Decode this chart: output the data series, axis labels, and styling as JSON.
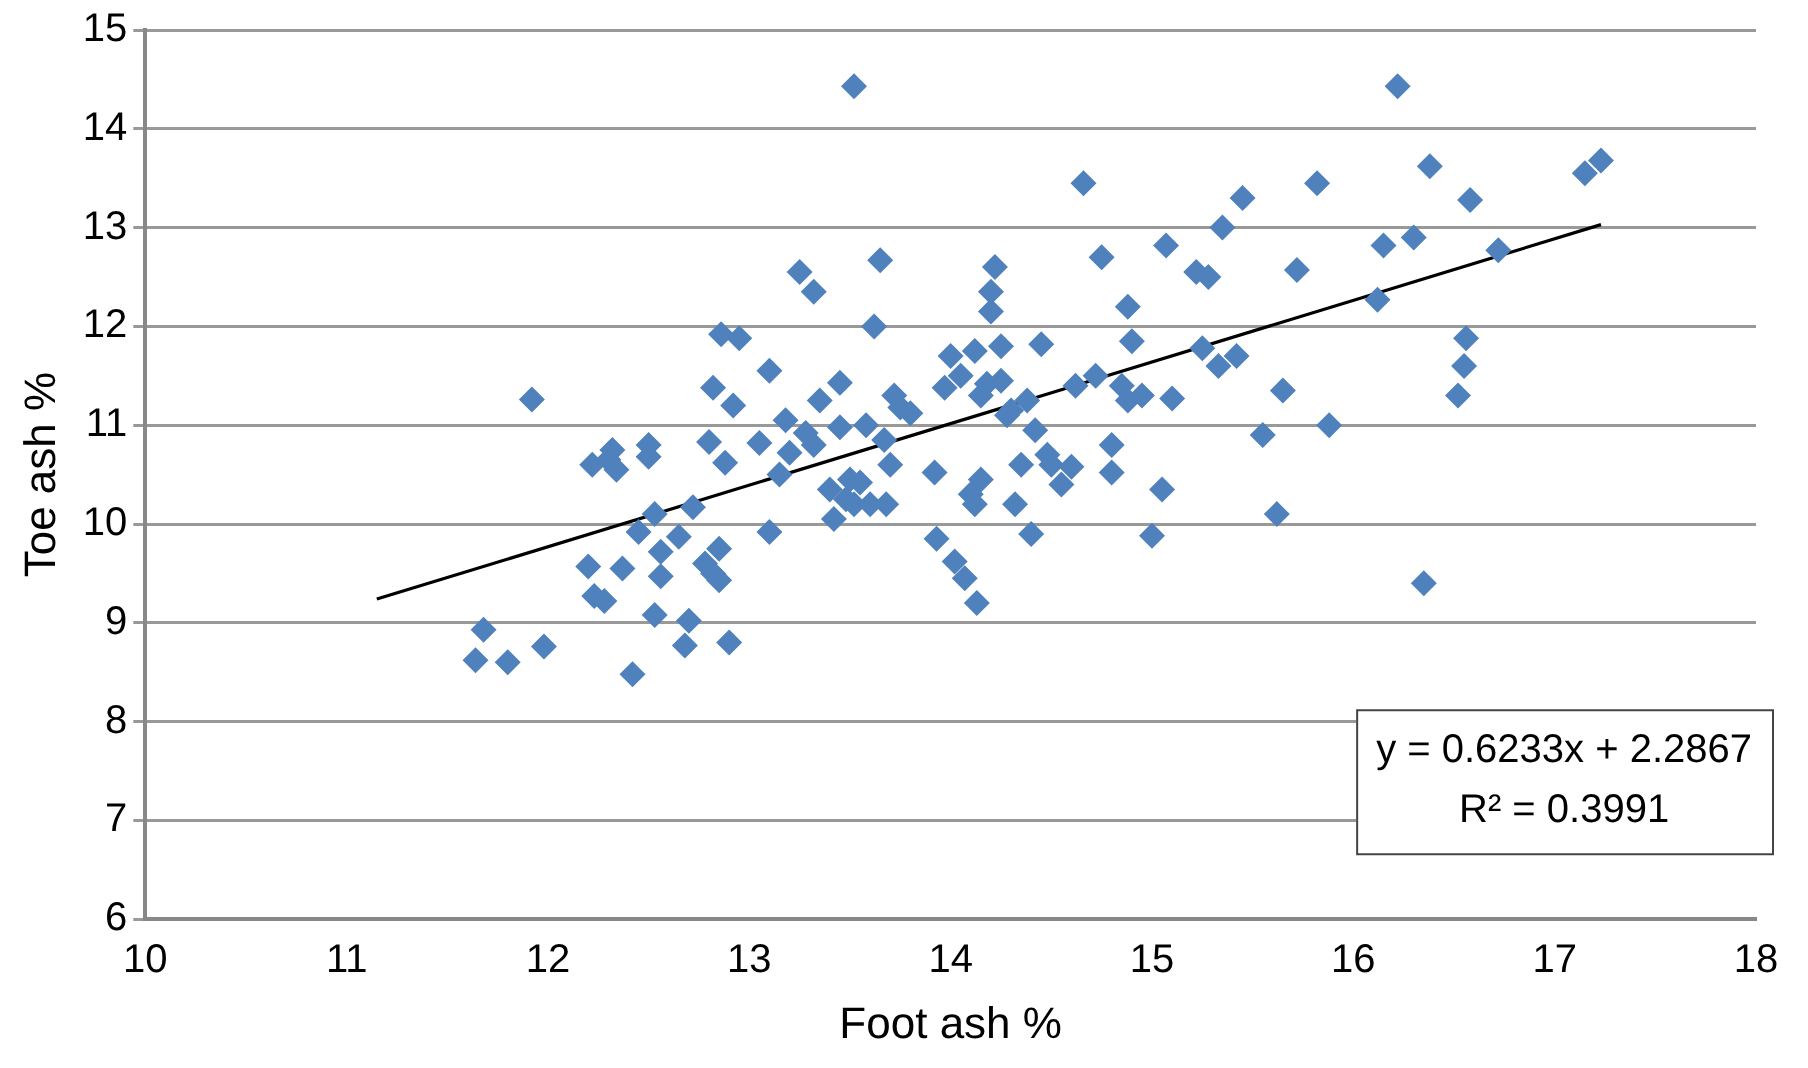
{
  "chart_data": {
    "type": "scatter",
    "xlabel": "Foot ash %",
    "ylabel": "Toe ash %",
    "xlim": [
      10,
      18
    ],
    "xticks": [
      10,
      11,
      12,
      13,
      14,
      15,
      16,
      17,
      18
    ],
    "ylim": [
      6,
      15
    ],
    "yticks": [
      6,
      7,
      8,
      9,
      10,
      11,
      12,
      13,
      14,
      15
    ],
    "grid": "y",
    "legend": false,
    "marker": "diamond",
    "annotations": [
      "y = 0.6233x + 2.2867",
      "R² = 0.3991"
    ],
    "series": [
      {
        "color": "#4f81bd",
        "x": [
          11.64,
          11.68,
          11.8,
          11.92,
          11.98,
          12.2,
          12.23,
          12.22,
          12.3,
          12.32,
          12.28,
          12.34,
          12.37,
          12.42,
          12.45,
          12.5,
          12.5,
          12.53,
          12.53,
          12.56,
          12.56,
          12.65,
          12.7,
          12.72,
          12.68,
          12.78,
          12.8,
          12.82,
          12.82,
          12.86,
          12.85,
          12.85,
          12.88,
          12.9,
          12.92,
          12.95,
          13.05,
          13.1,
          13.1,
          13.15,
          13.2,
          13.18,
          13.25,
          13.28,
          13.32,
          13.35,
          13.32,
          13.4,
          13.42,
          13.45,
          13.45,
          13.48,
          13.5,
          13.52,
          13.52,
          13.55,
          13.58,
          13.6,
          13.62,
          13.65,
          13.67,
          13.68,
          13.7,
          13.72,
          13.75,
          13.8,
          13.92,
          13.93,
          13.97,
          14.0,
          14.02,
          14.05,
          14.07,
          14.1,
          14.12,
          14.12,
          14.13,
          14.15,
          14.15,
          14.18,
          14.2,
          14.2,
          14.22,
          14.25,
          14.25,
          14.28,
          14.3,
          14.32,
          14.35,
          14.38,
          14.4,
          14.42,
          14.45,
          14.48,
          14.5,
          14.55,
          14.6,
          14.62,
          14.66,
          14.72,
          14.75,
          14.8,
          14.8,
          14.85,
          14.88,
          14.88,
          14.9,
          14.95,
          15.0,
          15.05,
          15.07,
          15.1,
          15.22,
          15.25,
          15.28,
          15.33,
          15.35,
          15.42,
          15.45,
          15.55,
          15.62,
          15.65,
          15.72,
          15.82,
          15.88,
          16.12,
          16.15,
          16.22,
          16.3,
          16.35,
          16.38,
          16.52,
          16.55,
          16.56,
          16.58,
          16.72,
          17.15,
          17.23
        ],
        "values": [
          8.62,
          8.93,
          8.6,
          11.26,
          8.76,
          9.57,
          9.27,
          10.6,
          10.65,
          10.75,
          9.22,
          10.55,
          9.55,
          8.48,
          9.92,
          10.8,
          10.68,
          10.1,
          9.08,
          9.72,
          9.47,
          9.87,
          9.02,
          10.17,
          8.77,
          9.6,
          10.83,
          11.38,
          9.5,
          11.92,
          9.75,
          9.43,
          10.62,
          8.8,
          11.2,
          11.88,
          10.82,
          9.92,
          11.55,
          10.5,
          10.72,
          11.05,
          12.55,
          10.92,
          12.35,
          11.25,
          10.8,
          10.35,
          10.05,
          11.43,
          10.98,
          10.25,
          10.45,
          14.43,
          10.2,
          10.42,
          11.0,
          10.2,
          12.0,
          12.67,
          10.85,
          10.2,
          10.6,
          11.3,
          11.18,
          11.12,
          10.52,
          9.85,
          11.38,
          11.7,
          9.62,
          11.5,
          9.45,
          10.3,
          10.2,
          11.75,
          9.2,
          11.3,
          10.45,
          11.42,
          12.35,
          12.15,
          12.6,
          11.8,
          11.45,
          11.1,
          11.15,
          10.2,
          10.6,
          11.25,
          9.9,
          10.95,
          11.82,
          10.7,
          10.6,
          10.4,
          10.58,
          11.4,
          13.45,
          11.5,
          12.7,
          10.8,
          10.52,
          11.4,
          11.25,
          12.2,
          11.85,
          11.3,
          9.88,
          10.35,
          12.82,
          11.27,
          12.55,
          11.78,
          12.5,
          11.6,
          13.0,
          11.7,
          13.3,
          10.9,
          10.1,
          11.35,
          12.57,
          13.45,
          11.0,
          12.27,
          12.82,
          14.43,
          12.9,
          9.4,
          13.62,
          11.3,
          11.6,
          11.88,
          13.28,
          12.77,
          13.55,
          13.68
        ]
      },
      {
        "type": "line",
        "color": "#000000",
        "marker": "none",
        "line_style": "solid",
        "x": [
          11.15,
          17.23
        ],
        "values": [
          9.24,
          13.03
        ]
      }
    ]
  }
}
